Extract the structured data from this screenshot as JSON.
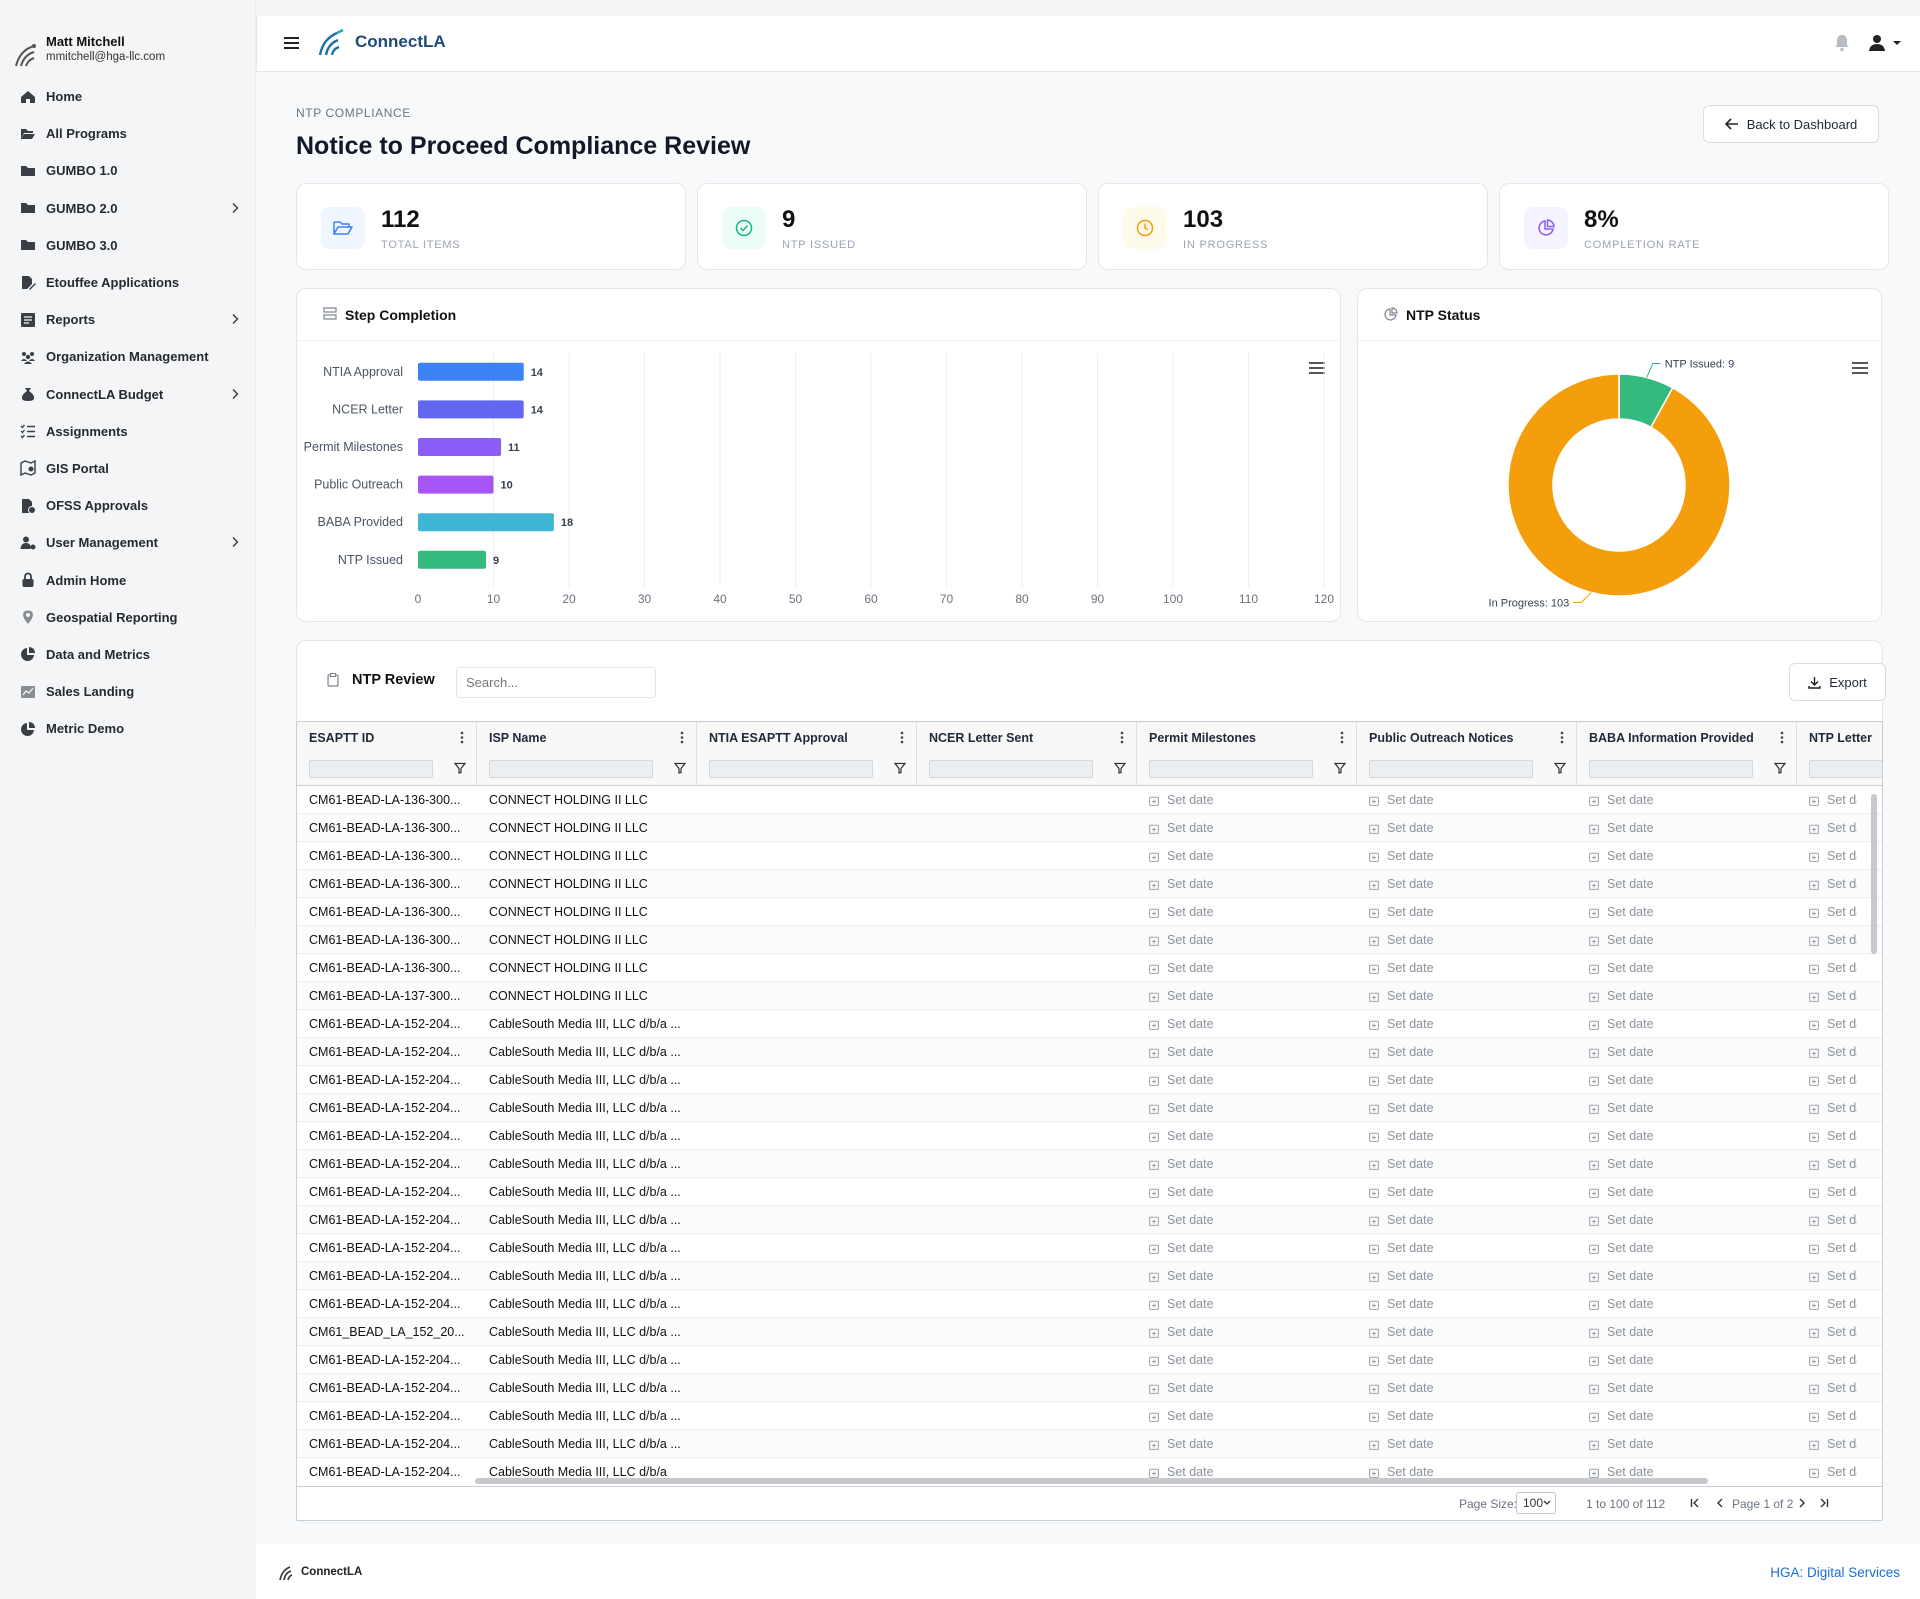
{
  "user": {
    "name": "Matt Mitchell",
    "email": "mmitchell@hga-llc.com"
  },
  "nav": [
    {
      "label": "Home",
      "icon": "home-icon",
      "chevron": false
    },
    {
      "label": "All Programs",
      "icon": "folder-open-icon",
      "chevron": false
    },
    {
      "label": "GUMBO 1.0",
      "icon": "folder-icon",
      "chevron": false
    },
    {
      "label": "GUMBO 2.0",
      "icon": "folder-icon",
      "chevron": true
    },
    {
      "label": "GUMBO 3.0",
      "icon": "folder-icon",
      "chevron": false
    },
    {
      "label": "Etouffee Applications",
      "icon": "file-signature-icon",
      "chevron": false
    },
    {
      "label": "Reports",
      "icon": "report-icon",
      "chevron": true
    },
    {
      "label": "Organization Management",
      "icon": "people-group-icon",
      "chevron": false
    },
    {
      "label": "ConnectLA Budget",
      "icon": "money-bag-icon",
      "chevron": true
    },
    {
      "label": "Assignments",
      "icon": "list-check-icon",
      "chevron": false
    },
    {
      "label": "GIS Portal",
      "icon": "map-icon",
      "chevron": false
    },
    {
      "label": "OFSS Approvals",
      "icon": "file-check-icon",
      "chevron": false
    },
    {
      "label": "User Management",
      "icon": "user-gear-icon",
      "chevron": true
    },
    {
      "label": "Admin Home",
      "icon": "lock-icon",
      "chevron": false
    },
    {
      "label": "Geospatial Reporting",
      "icon": "map-pin-icon",
      "chevron": false
    },
    {
      "label": "Data and Metrics",
      "icon": "chart-pie-icon",
      "chevron": false
    },
    {
      "label": "Sales Landing",
      "icon": "dashboard-icon",
      "chevron": false
    },
    {
      "label": "Metric Demo",
      "icon": "chart-pie-icon",
      "chevron": false
    }
  ],
  "header": {
    "brand": "ConnectLA"
  },
  "page": {
    "breadcrumb": "NTP COMPLIANCE",
    "title": "Notice to Proceed Compliance Review",
    "back_label": "Back to Dashboard"
  },
  "stats": [
    {
      "value": "112",
      "label": "TOTAL ITEMS",
      "icon": "folder-open-icon",
      "color": "#3b82f6",
      "bg": "#eff6ff"
    },
    {
      "value": "9",
      "label": "NTP ISSUED",
      "icon": "check-circle-icon",
      "color": "#10b981",
      "bg": "#ecfdf5"
    },
    {
      "value": "103",
      "label": "IN PROGRESS",
      "icon": "clock-icon",
      "color": "#f59e0b",
      "bg": "#fffbeb"
    },
    {
      "value": "8%",
      "label": "COMPLETION RATE",
      "icon": "chart-pie-icon",
      "color": "#8b5cf6",
      "bg": "#f5f3ff"
    }
  ],
  "step_chart": {
    "title": "Step Completion"
  },
  "status_chart": {
    "title": "NTP Status"
  },
  "chart_data": [
    {
      "type": "bar",
      "orientation": "horizontal",
      "title": "Step Completion",
      "categories": [
        "NTIA Approval",
        "NCER Letter",
        "Permit Milestones",
        "Public Outreach",
        "BABA Provided",
        "NTP Issued"
      ],
      "values": [
        14,
        14,
        11,
        10,
        18,
        9
      ],
      "colors": [
        "#3b82f6",
        "#6366f1",
        "#8b5cf6",
        "#a855f7",
        "#3fb6d5",
        "#34b97f"
      ],
      "xlim": [
        0,
        120
      ],
      "xticks": [
        0,
        10,
        20,
        30,
        40,
        50,
        60,
        70,
        80,
        90,
        100,
        110,
        120
      ],
      "grid": true
    },
    {
      "type": "pie",
      "variant": "donut",
      "title": "NTP Status",
      "labels": [
        "NTP Issued",
        "In Progress"
      ],
      "values": [
        9,
        103
      ],
      "colors": [
        "#34b97f",
        "#f59e0b"
      ],
      "data_labels": [
        "NTP Issued: 9",
        "In Progress: 103"
      ]
    }
  ],
  "table": {
    "title": "NTP Review",
    "search_placeholder": "Search...",
    "export_label": "Export",
    "columns": [
      "ESAPTT ID",
      "ISP Name",
      "NTIA ESAPTT Approval",
      "NCER Letter Sent",
      "Permit Milestones",
      "Public Outreach Notices",
      "BABA Information Provided",
      "NTP Letter"
    ],
    "set_date_label": "Set date",
    "rows": [
      [
        "CM61-BEAD-LA-136-300...",
        "CONNECT HOLDING II LLC"
      ],
      [
        "CM61-BEAD-LA-136-300...",
        "CONNECT HOLDING II LLC"
      ],
      [
        "CM61-BEAD-LA-136-300...",
        "CONNECT HOLDING II LLC"
      ],
      [
        "CM61-BEAD-LA-136-300...",
        "CONNECT HOLDING II LLC"
      ],
      [
        "CM61-BEAD-LA-136-300...",
        "CONNECT HOLDING II LLC"
      ],
      [
        "CM61-BEAD-LA-136-300...",
        "CONNECT HOLDING II LLC"
      ],
      [
        "CM61-BEAD-LA-136-300...",
        "CONNECT HOLDING II LLC"
      ],
      [
        "CM61-BEAD-LA-137-300...",
        "CONNECT HOLDING II LLC"
      ],
      [
        "CM61-BEAD-LA-152-204...",
        "CableSouth Media III, LLC d/b/a ..."
      ],
      [
        "CM61-BEAD-LA-152-204...",
        "CableSouth Media III, LLC d/b/a ..."
      ],
      [
        "CM61-BEAD-LA-152-204...",
        "CableSouth Media III, LLC d/b/a ..."
      ],
      [
        "CM61-BEAD-LA-152-204...",
        "CableSouth Media III, LLC d/b/a ..."
      ],
      [
        "CM61-BEAD-LA-152-204...",
        "CableSouth Media III, LLC d/b/a ..."
      ],
      [
        "CM61-BEAD-LA-152-204...",
        "CableSouth Media III, LLC d/b/a ..."
      ],
      [
        "CM61-BEAD-LA-152-204...",
        "CableSouth Media III, LLC d/b/a ..."
      ],
      [
        "CM61-BEAD-LA-152-204...",
        "CableSouth Media III, LLC d/b/a ..."
      ],
      [
        "CM61-BEAD-LA-152-204...",
        "CableSouth Media III, LLC d/b/a ..."
      ],
      [
        "CM61-BEAD-LA-152-204...",
        "CableSouth Media III, LLC d/b/a ..."
      ],
      [
        "CM61-BEAD-LA-152-204...",
        "CableSouth Media III, LLC d/b/a ..."
      ],
      [
        "CM61_BEAD_LA_152_20...",
        "CableSouth Media III, LLC d/b/a ..."
      ],
      [
        "CM61-BEAD-LA-152-204...",
        "CableSouth Media III, LLC d/b/a ..."
      ],
      [
        "CM61-BEAD-LA-152-204...",
        "CableSouth Media III, LLC d/b/a ..."
      ],
      [
        "CM61-BEAD-LA-152-204...",
        "CableSouth Media III, LLC d/b/a ..."
      ],
      [
        "CM61-BEAD-LA-152-204...",
        "CableSouth Media III, LLC d/b/a ..."
      ],
      [
        "CM61-BEAD-LA-152-204...",
        "CableSouth Media III, LLC d/b/a"
      ]
    ],
    "pagination": {
      "page_size_label": "Page Size:",
      "page_size": "100",
      "range": "1 to 100 of 112",
      "page_label": "Page 1 of 2"
    }
  },
  "footer": {
    "brand": "ConnectLA",
    "credit": "HGA: Digital Services"
  }
}
